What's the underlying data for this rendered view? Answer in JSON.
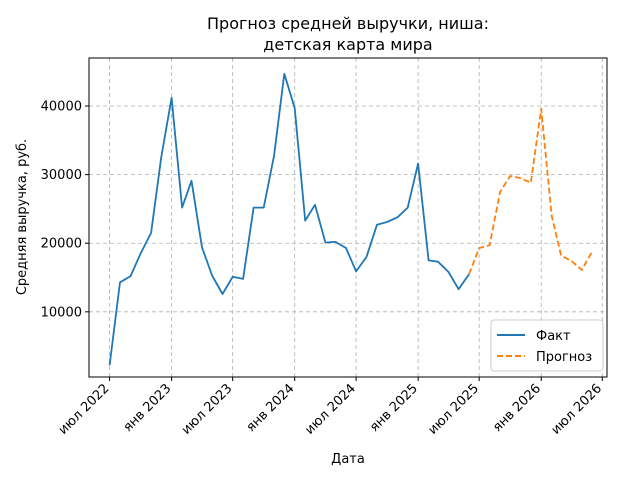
{
  "chart_data": {
    "type": "line",
    "title_line1": "Прогноз средней выручки, ниша:",
    "title_line2": "детская карта мира",
    "xlabel": "Дата",
    "ylabel": "Средняя выручка, руб.",
    "ylim": [
      500,
      47000
    ],
    "xlim": [
      "2022-05-01",
      "2026-07-15"
    ],
    "grid": true,
    "legend_position": "lower-right",
    "x_ticks": [
      {
        "date": "2022-07-01",
        "label": "июл 2022"
      },
      {
        "date": "2023-01-01",
        "label": "янв 2023"
      },
      {
        "date": "2023-07-01",
        "label": "июл 2023"
      },
      {
        "date": "2024-01-01",
        "label": "янв 2024"
      },
      {
        "date": "2024-07-01",
        "label": "июл 2024"
      },
      {
        "date": "2025-01-01",
        "label": "янв 2025"
      },
      {
        "date": "2025-07-01",
        "label": "июл 2025"
      },
      {
        "date": "2026-01-01",
        "label": "янв 2026"
      },
      {
        "date": "2026-07-01",
        "label": "июл 2026"
      }
    ],
    "y_ticks": [
      10000,
      20000,
      30000,
      40000
    ],
    "series": [
      {
        "name": "Факт",
        "color": "#1f77b4",
        "style": "solid",
        "x": [
          "2022-07-01",
          "2022-08-01",
          "2022-09-01",
          "2022-10-01",
          "2022-11-01",
          "2022-12-01",
          "2023-01-01",
          "2023-02-01",
          "2023-03-01",
          "2023-04-01",
          "2023-05-01",
          "2023-06-01",
          "2023-07-01",
          "2023-08-01",
          "2023-09-01",
          "2023-10-01",
          "2023-11-01",
          "2023-12-01",
          "2024-01-01",
          "2024-02-01",
          "2024-03-01",
          "2024-04-01",
          "2024-05-01",
          "2024-06-01",
          "2024-07-01",
          "2024-08-01",
          "2024-09-01",
          "2024-10-01",
          "2024-11-01",
          "2024-12-01",
          "2025-01-01",
          "2025-02-01",
          "2025-03-01",
          "2025-04-01",
          "2025-05-01",
          "2025-06-01"
        ],
        "y": [
          2200,
          14300,
          15200,
          18500,
          21500,
          32500,
          41200,
          25200,
          29100,
          19400,
          15300,
          12600,
          15100,
          14800,
          25200,
          25200,
          32800,
          44700,
          39700,
          23300,
          25600,
          20100,
          20200,
          19300,
          15900,
          18000,
          22700,
          23100,
          23800,
          25200,
          31600,
          17500,
          17300,
          15800,
          13300,
          15500
        ]
      },
      {
        "name": "Прогноз",
        "color": "#ff7f0e",
        "style": "dashed",
        "x": [
          "2025-06-01",
          "2025-07-01",
          "2025-08-01",
          "2025-09-01",
          "2025-10-01",
          "2025-11-01",
          "2025-12-01",
          "2026-01-01",
          "2026-02-01",
          "2026-03-01",
          "2026-04-01",
          "2026-05-01",
          "2026-06-01"
        ],
        "y": [
          15500,
          19300,
          19700,
          27500,
          29800,
          29500,
          28800,
          39600,
          24000,
          18200,
          17400,
          16100,
          18800
        ]
      }
    ]
  }
}
